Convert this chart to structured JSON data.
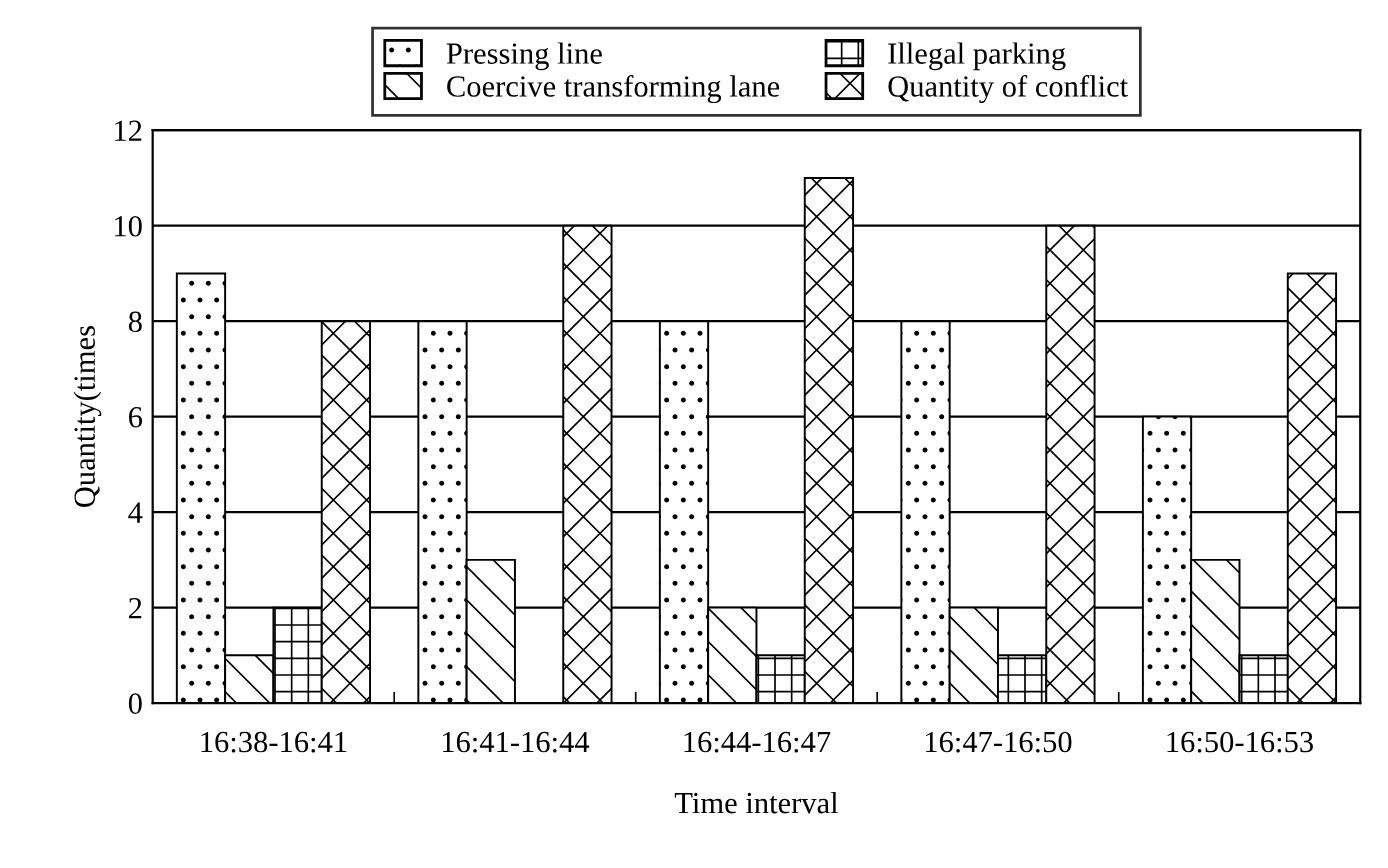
{
  "chart_data": {
    "type": "bar",
    "xlabel": "Time interval",
    "ylabel": "Quantity(times",
    "categories": [
      "16:38-16:41",
      "16:41-16:44",
      "16:44-16:47",
      "16:47-16:50",
      "16:50-16:53"
    ],
    "series": [
      {
        "name": "Pressing line",
        "color": "#000000",
        "values": [
          9,
          8,
          8,
          8,
          6
        ]
      },
      {
        "name": "Coercive transforming lane",
        "color": "#000000",
        "values": [
          1,
          3,
          2,
          2,
          3
        ]
      },
      {
        "name": "Illegal parking",
        "color": "#000000",
        "values": [
          2,
          0,
          1,
          1,
          1
        ]
      },
      {
        "name": "Quantity of conflict",
        "color": "#000000",
        "values": [
          8,
          10,
          11,
          10,
          9
        ]
      }
    ],
    "ylim": [
      0,
      12
    ],
    "yticks": [
      0,
      2,
      4,
      6,
      8,
      10,
      12
    ],
    "grid": "y",
    "legend": "top"
  }
}
